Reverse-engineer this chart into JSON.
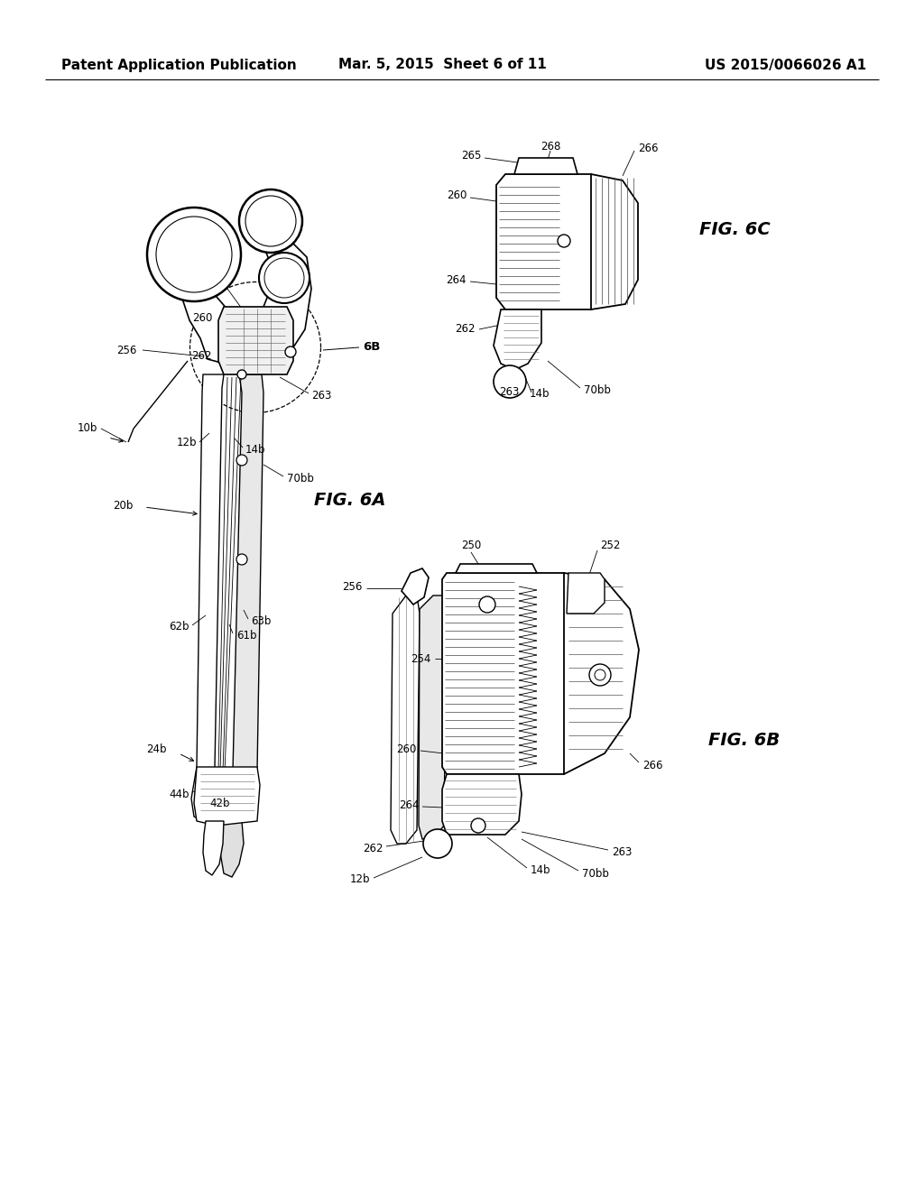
{
  "background_color": "#ffffff",
  "header_left": "Patent Application Publication",
  "header_center": "Mar. 5, 2015  Sheet 6 of 11",
  "header_right": "US 2015/0066026 A1",
  "fig6a_label": "FIG. 6A",
  "fig6b_label": "FIG. 6B",
  "fig6c_label": "FIG. 6C",
  "label_fontsize": 14,
  "annotation_fontsize": 8.5,
  "header_fontsize": 11
}
